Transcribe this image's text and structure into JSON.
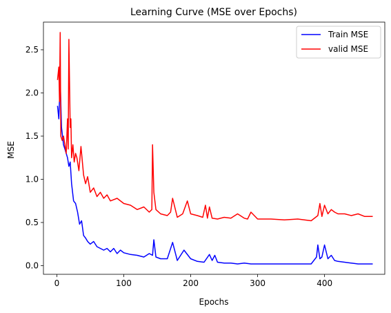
{
  "chart_data": {
    "type": "line",
    "title": "Learning Curve (MSE over Epochs)",
    "xlabel": "Epochs",
    "ylabel": "MSE",
    "xlim": [
      -20,
      490
    ],
    "ylim": [
      -0.1,
      2.82
    ],
    "xticks": [
      0,
      100,
      200,
      300,
      400
    ],
    "yticks": [
      0.0,
      0.5,
      1.0,
      1.5,
      2.0,
      2.5
    ],
    "xtick_labels": [
      "0",
      "100",
      "200",
      "300",
      "400"
    ],
    "ytick_labels": [
      "0.0",
      "0.5",
      "1.0",
      "1.5",
      "2.0",
      "2.5"
    ],
    "legend_position": "top-right",
    "grid": false,
    "series": [
      {
        "name": "Train MSE",
        "color": "#0000ff",
        "x": [
          1,
          3,
          5,
          7,
          10,
          12,
          14,
          16,
          18,
          20,
          22,
          25,
          28,
          31,
          34,
          37,
          40,
          43,
          46,
          50,
          55,
          60,
          65,
          70,
          75,
          80,
          85,
          90,
          95,
          100,
          110,
          120,
          130,
          138,
          143,
          145,
          148,
          155,
          165,
          173,
          180,
          190,
          200,
          210,
          220,
          228,
          232,
          236,
          240,
          250,
          260,
          270,
          280,
          290,
          300,
          320,
          340,
          360,
          380,
          388,
          390,
          393,
          396,
          400,
          405,
          410,
          415,
          420,
          430,
          440,
          450,
          460,
          472
        ],
        "values": [
          1.85,
          1.7,
          2.15,
          1.6,
          1.4,
          1.35,
          1.3,
          1.25,
          1.15,
          1.2,
          0.95,
          0.75,
          0.72,
          0.62,
          0.48,
          0.52,
          0.35,
          0.32,
          0.28,
          0.25,
          0.28,
          0.22,
          0.2,
          0.18,
          0.2,
          0.16,
          0.2,
          0.14,
          0.18,
          0.15,
          0.13,
          0.12,
          0.1,
          0.14,
          0.12,
          0.3,
          0.1,
          0.08,
          0.08,
          0.27,
          0.06,
          0.18,
          0.08,
          0.05,
          0.04,
          0.13,
          0.06,
          0.12,
          0.04,
          0.03,
          0.03,
          0.02,
          0.03,
          0.02,
          0.02,
          0.02,
          0.02,
          0.02,
          0.02,
          0.1,
          0.24,
          0.08,
          0.1,
          0.24,
          0.08,
          0.12,
          0.06,
          0.05,
          0.04,
          0.03,
          0.02,
          0.02,
          0.02
        ]
      },
      {
        "name": "valid MSE",
        "color": "#ff0000",
        "x": [
          1,
          3,
          4,
          5,
          6,
          8,
          10,
          12,
          14,
          16,
          17,
          18,
          20,
          21,
          22,
          24,
          26,
          28,
          30,
          33,
          36,
          40,
          43,
          46,
          50,
          55,
          60,
          65,
          70,
          75,
          80,
          90,
          100,
          110,
          120,
          130,
          138,
          142,
          143,
          145,
          148,
          155,
          165,
          170,
          173,
          180,
          188,
          195,
          200,
          210,
          218,
          222,
          225,
          228,
          232,
          240,
          250,
          260,
          270,
          280,
          285,
          290,
          300,
          320,
          340,
          360,
          380,
          390,
          393,
          396,
          400,
          405,
          410,
          415,
          420,
          430,
          440,
          450,
          460,
          472
        ],
        "values": [
          2.15,
          2.3,
          1.9,
          2.7,
          1.5,
          1.45,
          1.5,
          1.4,
          1.3,
          1.7,
          1.35,
          2.62,
          1.6,
          1.7,
          1.25,
          1.4,
          1.2,
          1.3,
          1.25,
          1.1,
          1.38,
          1.05,
          0.95,
          1.03,
          0.85,
          0.9,
          0.8,
          0.85,
          0.78,
          0.82,
          0.75,
          0.78,
          0.72,
          0.7,
          0.65,
          0.68,
          0.62,
          0.65,
          1.4,
          0.85,
          0.65,
          0.6,
          0.58,
          0.62,
          0.78,
          0.56,
          0.6,
          0.75,
          0.6,
          0.58,
          0.56,
          0.7,
          0.55,
          0.68,
          0.55,
          0.54,
          0.56,
          0.55,
          0.6,
          0.55,
          0.54,
          0.62,
          0.54,
          0.54,
          0.53,
          0.54,
          0.52,
          0.58,
          0.72,
          0.57,
          0.7,
          0.6,
          0.65,
          0.62,
          0.6,
          0.6,
          0.58,
          0.6,
          0.57,
          0.57
        ]
      }
    ]
  }
}
